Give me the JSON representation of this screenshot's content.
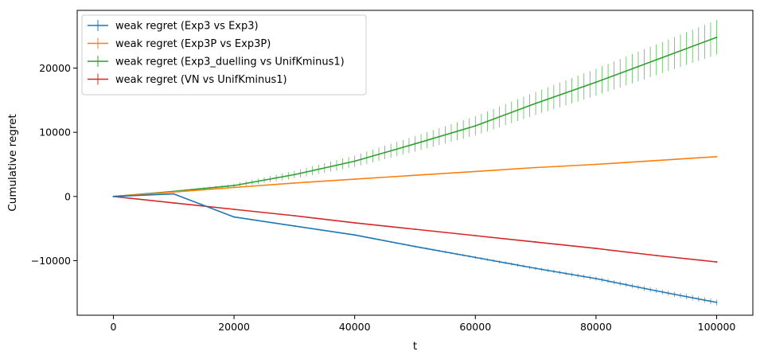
{
  "chart_data": {
    "type": "line",
    "title": "",
    "xlabel": "t",
    "ylabel": "Cumulative regret",
    "xlim": [
      -6000,
      106000
    ],
    "ylim": [
      -18500,
      29000
    ],
    "x_ticks": [
      0,
      20000,
      40000,
      60000,
      80000,
      100000
    ],
    "x_tick_labels": [
      "0",
      "20000",
      "40000",
      "60000",
      "80000",
      "100000"
    ],
    "y_ticks": [
      -10000,
      0,
      10000,
      20000
    ],
    "y_tick_labels": [
      "−10000",
      "0",
      "10000",
      "20000"
    ],
    "grid": false,
    "legend_position": "top-left",
    "x": [
      0,
      10000,
      20000,
      30000,
      40000,
      50000,
      60000,
      70000,
      80000,
      90000,
      100000
    ],
    "series": [
      {
        "name": "weak regret (Exp3 vs Exp3)",
        "color": "#1f77b4",
        "values": [
          0,
          400,
          -3200,
          -4600,
          -6000,
          -7800,
          -9500,
          -11200,
          -12800,
          -14700,
          -16500
        ],
        "error": [
          0,
          30,
          60,
          90,
          120,
          150,
          200,
          260,
          320,
          380,
          450
        ]
      },
      {
        "name": "weak regret (Exp3P vs Exp3P)",
        "color": "#ff7f0e",
        "values": [
          0,
          700,
          1400,
          2100,
          2700,
          3300,
          3900,
          4500,
          5000,
          5600,
          6200
        ],
        "error": [
          0,
          20,
          40,
          50,
          60,
          70,
          80,
          90,
          100,
          110,
          120
        ]
      },
      {
        "name": "weak regret (Exp3_duelling vs UnifKminus1)",
        "color": "#2ca02c",
        "values": [
          0,
          800,
          1700,
          3400,
          5500,
          8200,
          11000,
          14500,
          17800,
          21300,
          24800
        ],
        "error": [
          0,
          100,
          300,
          600,
          900,
          1200,
          1500,
          1800,
          2100,
          2400,
          2700
        ]
      },
      {
        "name": "weak regret (VN vs UnifKminus1)",
        "color": "#d62728",
        "values": [
          0,
          -1000,
          -2000,
          -3000,
          -4100,
          -5100,
          -6100,
          -7100,
          -8100,
          -9200,
          -10200
        ],
        "error": [
          0,
          20,
          30,
          40,
          50,
          60,
          70,
          80,
          90,
          100,
          110
        ]
      }
    ]
  }
}
